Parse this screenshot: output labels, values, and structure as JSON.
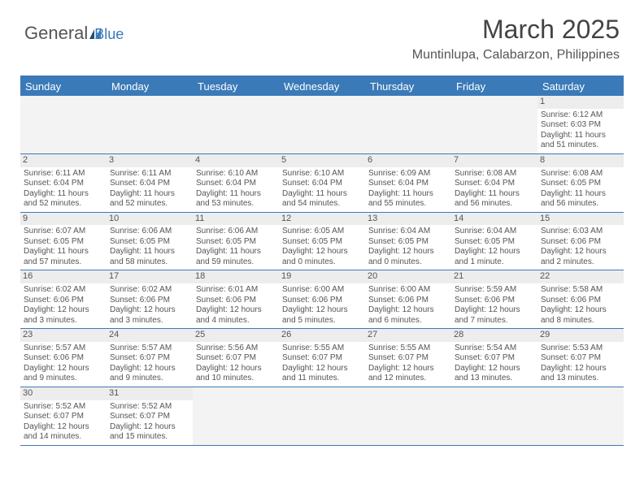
{
  "logo": {
    "text_main": "General",
    "text_accent": "Blue"
  },
  "title": "March 2025",
  "location": "Muntinlupa, Calabarzon, Philippines",
  "colors": {
    "header_bar": "#3a7ab8",
    "header_text": "#ffffff",
    "daynum_bg": "#ededed",
    "empty_bg": "#f3f3f3",
    "body_text": "#555555",
    "rule": "#3a7ab8"
  },
  "days_of_week": [
    "Sunday",
    "Monday",
    "Tuesday",
    "Wednesday",
    "Thursday",
    "Friday",
    "Saturday"
  ],
  "weeks": [
    [
      null,
      null,
      null,
      null,
      null,
      null,
      {
        "n": "1",
        "sunrise": "Sunrise: 6:12 AM",
        "sunset": "Sunset: 6:03 PM",
        "daylight": "Daylight: 11 hours and 51 minutes."
      }
    ],
    [
      {
        "n": "2",
        "sunrise": "Sunrise: 6:11 AM",
        "sunset": "Sunset: 6:04 PM",
        "daylight": "Daylight: 11 hours and 52 minutes."
      },
      {
        "n": "3",
        "sunrise": "Sunrise: 6:11 AM",
        "sunset": "Sunset: 6:04 PM",
        "daylight": "Daylight: 11 hours and 52 minutes."
      },
      {
        "n": "4",
        "sunrise": "Sunrise: 6:10 AM",
        "sunset": "Sunset: 6:04 PM",
        "daylight": "Daylight: 11 hours and 53 minutes."
      },
      {
        "n": "5",
        "sunrise": "Sunrise: 6:10 AM",
        "sunset": "Sunset: 6:04 PM",
        "daylight": "Daylight: 11 hours and 54 minutes."
      },
      {
        "n": "6",
        "sunrise": "Sunrise: 6:09 AM",
        "sunset": "Sunset: 6:04 PM",
        "daylight": "Daylight: 11 hours and 55 minutes."
      },
      {
        "n": "7",
        "sunrise": "Sunrise: 6:08 AM",
        "sunset": "Sunset: 6:04 PM",
        "daylight": "Daylight: 11 hours and 56 minutes."
      },
      {
        "n": "8",
        "sunrise": "Sunrise: 6:08 AM",
        "sunset": "Sunset: 6:05 PM",
        "daylight": "Daylight: 11 hours and 56 minutes."
      }
    ],
    [
      {
        "n": "9",
        "sunrise": "Sunrise: 6:07 AM",
        "sunset": "Sunset: 6:05 PM",
        "daylight": "Daylight: 11 hours and 57 minutes."
      },
      {
        "n": "10",
        "sunrise": "Sunrise: 6:06 AM",
        "sunset": "Sunset: 6:05 PM",
        "daylight": "Daylight: 11 hours and 58 minutes."
      },
      {
        "n": "11",
        "sunrise": "Sunrise: 6:06 AM",
        "sunset": "Sunset: 6:05 PM",
        "daylight": "Daylight: 11 hours and 59 minutes."
      },
      {
        "n": "12",
        "sunrise": "Sunrise: 6:05 AM",
        "sunset": "Sunset: 6:05 PM",
        "daylight": "Daylight: 12 hours and 0 minutes."
      },
      {
        "n": "13",
        "sunrise": "Sunrise: 6:04 AM",
        "sunset": "Sunset: 6:05 PM",
        "daylight": "Daylight: 12 hours and 0 minutes."
      },
      {
        "n": "14",
        "sunrise": "Sunrise: 6:04 AM",
        "sunset": "Sunset: 6:05 PM",
        "daylight": "Daylight: 12 hours and 1 minute."
      },
      {
        "n": "15",
        "sunrise": "Sunrise: 6:03 AM",
        "sunset": "Sunset: 6:06 PM",
        "daylight": "Daylight: 12 hours and 2 minutes."
      }
    ],
    [
      {
        "n": "16",
        "sunrise": "Sunrise: 6:02 AM",
        "sunset": "Sunset: 6:06 PM",
        "daylight": "Daylight: 12 hours and 3 minutes."
      },
      {
        "n": "17",
        "sunrise": "Sunrise: 6:02 AM",
        "sunset": "Sunset: 6:06 PM",
        "daylight": "Daylight: 12 hours and 3 minutes."
      },
      {
        "n": "18",
        "sunrise": "Sunrise: 6:01 AM",
        "sunset": "Sunset: 6:06 PM",
        "daylight": "Daylight: 12 hours and 4 minutes."
      },
      {
        "n": "19",
        "sunrise": "Sunrise: 6:00 AM",
        "sunset": "Sunset: 6:06 PM",
        "daylight": "Daylight: 12 hours and 5 minutes."
      },
      {
        "n": "20",
        "sunrise": "Sunrise: 6:00 AM",
        "sunset": "Sunset: 6:06 PM",
        "daylight": "Daylight: 12 hours and 6 minutes."
      },
      {
        "n": "21",
        "sunrise": "Sunrise: 5:59 AM",
        "sunset": "Sunset: 6:06 PM",
        "daylight": "Daylight: 12 hours and 7 minutes."
      },
      {
        "n": "22",
        "sunrise": "Sunrise: 5:58 AM",
        "sunset": "Sunset: 6:06 PM",
        "daylight": "Daylight: 12 hours and 8 minutes."
      }
    ],
    [
      {
        "n": "23",
        "sunrise": "Sunrise: 5:57 AM",
        "sunset": "Sunset: 6:06 PM",
        "daylight": "Daylight: 12 hours and 9 minutes."
      },
      {
        "n": "24",
        "sunrise": "Sunrise: 5:57 AM",
        "sunset": "Sunset: 6:07 PM",
        "daylight": "Daylight: 12 hours and 9 minutes."
      },
      {
        "n": "25",
        "sunrise": "Sunrise: 5:56 AM",
        "sunset": "Sunset: 6:07 PM",
        "daylight": "Daylight: 12 hours and 10 minutes."
      },
      {
        "n": "26",
        "sunrise": "Sunrise: 5:55 AM",
        "sunset": "Sunset: 6:07 PM",
        "daylight": "Daylight: 12 hours and 11 minutes."
      },
      {
        "n": "27",
        "sunrise": "Sunrise: 5:55 AM",
        "sunset": "Sunset: 6:07 PM",
        "daylight": "Daylight: 12 hours and 12 minutes."
      },
      {
        "n": "28",
        "sunrise": "Sunrise: 5:54 AM",
        "sunset": "Sunset: 6:07 PM",
        "daylight": "Daylight: 12 hours and 13 minutes."
      },
      {
        "n": "29",
        "sunrise": "Sunrise: 5:53 AM",
        "sunset": "Sunset: 6:07 PM",
        "daylight": "Daylight: 12 hours and 13 minutes."
      }
    ],
    [
      {
        "n": "30",
        "sunrise": "Sunrise: 5:52 AM",
        "sunset": "Sunset: 6:07 PM",
        "daylight": "Daylight: 12 hours and 14 minutes."
      },
      {
        "n": "31",
        "sunrise": "Sunrise: 5:52 AM",
        "sunset": "Sunset: 6:07 PM",
        "daylight": "Daylight: 12 hours and 15 minutes."
      },
      null,
      null,
      null,
      null,
      null
    ]
  ]
}
